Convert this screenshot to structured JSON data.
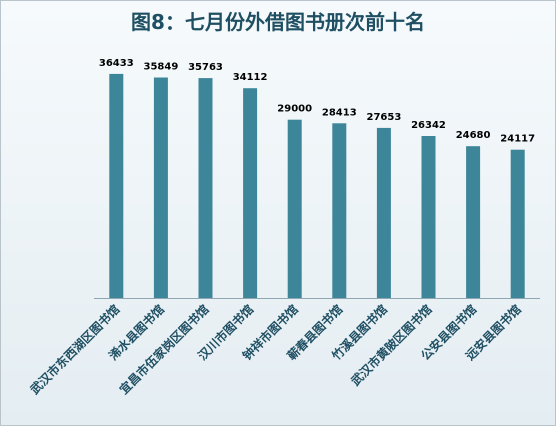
{
  "title": "图8：七月份外借图书册次前十名",
  "chart_data": {
    "type": "bar",
    "title": "图8：七月份外借图书册次前十名",
    "categories": [
      "武汉市东西湖区图书馆",
      "浠水县图书馆",
      "宜昌市伍家岗区图书馆",
      "汉川市图书馆",
      "钟祥市图书馆",
      "蕲春县图书馆",
      "竹溪县图书馆",
      "武汉市黄陂区图书馆",
      "公安县图书馆",
      "远安县图书馆"
    ],
    "values": [
      36433,
      35849,
      35763,
      34112,
      29000,
      28413,
      27653,
      26342,
      24680,
      24117
    ],
    "ylim": [
      0,
      40000
    ],
    "xlabel": "",
    "ylabel": "",
    "grid": false,
    "legend": "none",
    "bar_color": "#3d8599"
  }
}
